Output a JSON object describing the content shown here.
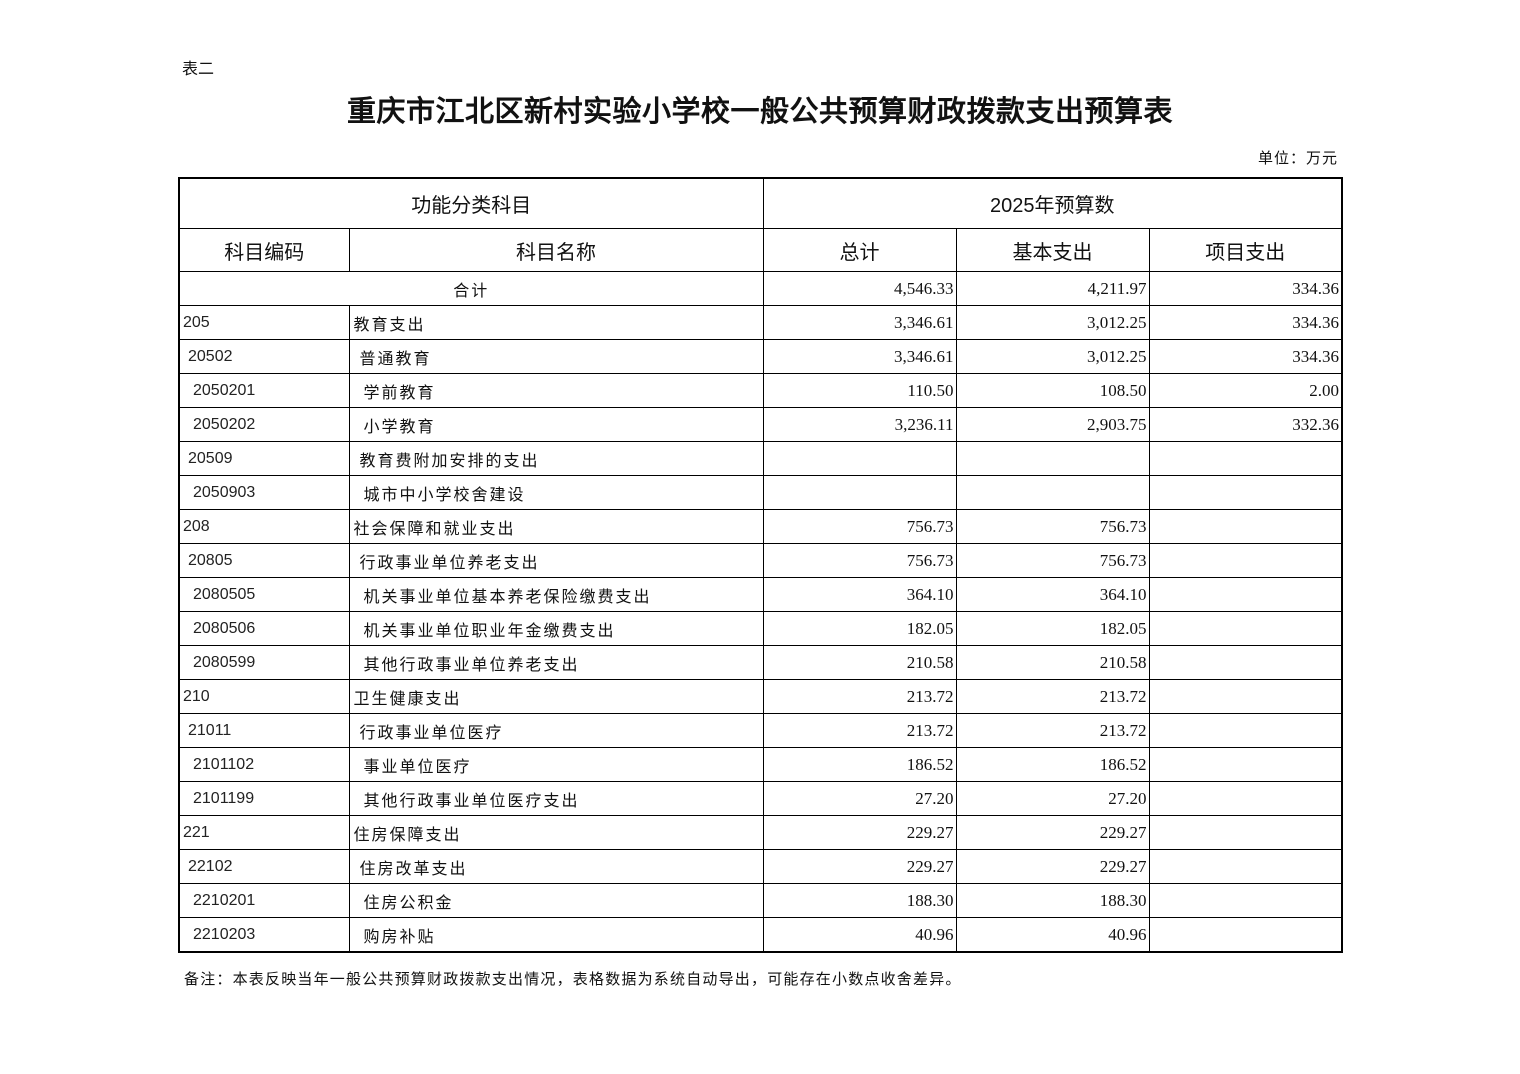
{
  "doc": {
    "tag": "表二",
    "title": "重庆市江北区新村实验小学校一般公共预算财政拨款支出预算表",
    "unit": "单位：万元",
    "note": "备注：本表反映当年一般公共预算财政拨款支出情况，表格数据为系统自动导出，可能存在小数点收舍差异。"
  },
  "table": {
    "group_headers": [
      "功能分类科目",
      "2025年预算数"
    ],
    "columns": [
      "科目编码",
      "科目名称",
      "总计",
      "基本支出",
      "项目支出"
    ],
    "total": {
      "label": "合计",
      "total": "4,546.33",
      "basic": "4,211.97",
      "project": "334.36"
    },
    "rows": [
      {
        "level": 1,
        "code": "205",
        "name": "教育支出",
        "total": "3,346.61",
        "basic": "3,012.25",
        "project": "334.36"
      },
      {
        "level": 2,
        "code": "20502",
        "name": "普通教育",
        "total": "3,346.61",
        "basic": "3,012.25",
        "project": "334.36"
      },
      {
        "level": 3,
        "code": "2050201",
        "name": "学前教育",
        "total": "110.50",
        "basic": "108.50",
        "project": "2.00"
      },
      {
        "level": 3,
        "code": "2050202",
        "name": "小学教育",
        "total": "3,236.11",
        "basic": "2,903.75",
        "project": "332.36"
      },
      {
        "level": 2,
        "code": "20509",
        "name": "教育费附加安排的支出",
        "total": "",
        "basic": "",
        "project": ""
      },
      {
        "level": 3,
        "code": "2050903",
        "name": "城市中小学校舍建设",
        "total": "",
        "basic": "",
        "project": ""
      },
      {
        "level": 1,
        "code": "208",
        "name": "社会保障和就业支出",
        "total": "756.73",
        "basic": "756.73",
        "project": ""
      },
      {
        "level": 2,
        "code": "20805",
        "name": "行政事业单位养老支出",
        "total": "756.73",
        "basic": "756.73",
        "project": ""
      },
      {
        "level": 3,
        "code": "2080505",
        "name": "机关事业单位基本养老保险缴费支出",
        "total": "364.10",
        "basic": "364.10",
        "project": ""
      },
      {
        "level": 3,
        "code": "2080506",
        "name": "机关事业单位职业年金缴费支出",
        "total": "182.05",
        "basic": "182.05",
        "project": ""
      },
      {
        "level": 3,
        "code": "2080599",
        "name": "其他行政事业单位养老支出",
        "total": "210.58",
        "basic": "210.58",
        "project": ""
      },
      {
        "level": 1,
        "code": "210",
        "name": "卫生健康支出",
        "total": "213.72",
        "basic": "213.72",
        "project": ""
      },
      {
        "level": 2,
        "code": "21011",
        "name": "行政事业单位医疗",
        "total": "213.72",
        "basic": "213.72",
        "project": ""
      },
      {
        "level": 3,
        "code": "2101102",
        "name": "事业单位医疗",
        "total": "186.52",
        "basic": "186.52",
        "project": ""
      },
      {
        "level": 3,
        "code": "2101199",
        "name": "其他行政事业单位医疗支出",
        "total": "27.20",
        "basic": "27.20",
        "project": ""
      },
      {
        "level": 1,
        "code": "221",
        "name": "住房保障支出",
        "total": "229.27",
        "basic": "229.27",
        "project": ""
      },
      {
        "level": 2,
        "code": "22102",
        "name": "住房改革支出",
        "total": "229.27",
        "basic": "229.27",
        "project": ""
      },
      {
        "level": 3,
        "code": "2210201",
        "name": "住房公积金",
        "total": "188.30",
        "basic": "188.30",
        "project": ""
      },
      {
        "level": 3,
        "code": "2210203",
        "name": "购房补贴",
        "total": "40.96",
        "basic": "40.96",
        "project": ""
      }
    ]
  }
}
